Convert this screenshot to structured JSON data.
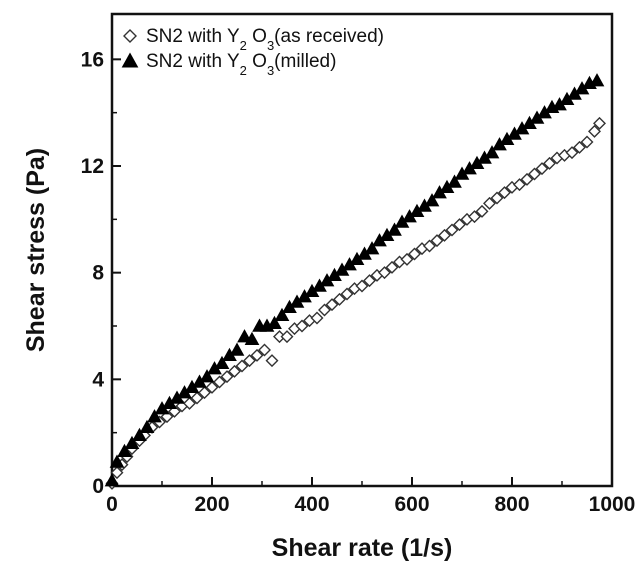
{
  "chart_data": {
    "type": "scatter",
    "xlabel": "Shear rate (1/s)",
    "ylabel": "Shear stress (Pa)",
    "xlim": [
      0,
      1000
    ],
    "ylim": [
      0,
      17.7
    ],
    "xticks": [
      0,
      200,
      400,
      600,
      800,
      1000
    ],
    "yticks": [
      0,
      4,
      8,
      12,
      16
    ],
    "xtick_labels": [
      "0",
      "200",
      "400",
      "600",
      "800",
      "1000"
    ],
    "ytick_labels": [
      "0",
      "4",
      "8",
      "12",
      "16"
    ],
    "grid": false,
    "legend_position": "top-left",
    "series": [
      {
        "name": "SN2  with Y2 O3(as received)",
        "legend_parts": {
          "prefix": "SN2  with Y",
          "sub1": "2",
          "mid": " O",
          "sub2": "3",
          "suffix": "(as received)"
        },
        "marker": "open-diamond",
        "color": "#333333",
        "x": [
          0,
          10,
          20,
          30,
          40,
          55,
          65,
          80,
          95,
          110,
          125,
          140,
          155,
          170,
          185,
          200,
          215,
          230,
          245,
          260,
          275,
          290,
          305,
          320,
          335,
          350,
          365,
          380,
          395,
          410,
          425,
          440,
          455,
          470,
          485,
          500,
          515,
          530,
          545,
          560,
          575,
          590,
          605,
          620,
          635,
          650,
          665,
          680,
          695,
          710,
          725,
          740,
          755,
          770,
          785,
          800,
          815,
          830,
          845,
          860,
          875,
          890,
          905,
          920,
          935,
          950,
          965,
          975
        ],
        "y": [
          0.1,
          0.5,
          0.8,
          1.1,
          1.4,
          1.7,
          1.9,
          2.2,
          2.4,
          2.6,
          2.8,
          3.0,
          3.1,
          3.3,
          3.5,
          3.7,
          3.9,
          4.1,
          4.3,
          4.5,
          4.7,
          4.9,
          5.1,
          4.7,
          5.6,
          5.6,
          5.9,
          6.0,
          6.2,
          6.3,
          6.6,
          6.8,
          7.0,
          7.2,
          7.4,
          7.5,
          7.7,
          7.9,
          8.0,
          8.2,
          8.4,
          8.5,
          8.7,
          8.9,
          9.0,
          9.2,
          9.4,
          9.6,
          9.8,
          10.0,
          10.1,
          10.3,
          10.6,
          10.8,
          11.0,
          11.2,
          11.3,
          11.5,
          11.7,
          11.9,
          12.1,
          12.3,
          12.4,
          12.5,
          12.7,
          12.9,
          13.3,
          13.6
        ]
      },
      {
        "name": "SN2  with Y2 O3(milled)",
        "legend_parts": {
          "prefix": "SN2  with Y",
          "sub1": "2",
          "mid": " O",
          "sub2": "3",
          "suffix": "(milled)"
        },
        "marker": "filled-triangle",
        "color": "#000000",
        "x": [
          0,
          10,
          25,
          40,
          55,
          70,
          85,
          100,
          115,
          130,
          145,
          160,
          175,
          190,
          205,
          220,
          235,
          250,
          265,
          280,
          295,
          310,
          325,
          340,
          355,
          370,
          385,
          400,
          415,
          430,
          445,
          460,
          475,
          490,
          505,
          520,
          535,
          550,
          565,
          580,
          595,
          610,
          625,
          640,
          655,
          670,
          685,
          700,
          715,
          730,
          745,
          760,
          775,
          790,
          805,
          820,
          835,
          850,
          865,
          880,
          895,
          910,
          925,
          940,
          955,
          970
        ],
        "y": [
          0.2,
          0.9,
          1.3,
          1.6,
          1.9,
          2.2,
          2.6,
          2.9,
          3.1,
          3.3,
          3.5,
          3.7,
          3.9,
          4.1,
          4.4,
          4.6,
          4.9,
          5.1,
          5.6,
          5.5,
          6.0,
          6.0,
          6.1,
          6.4,
          6.7,
          6.9,
          7.1,
          7.3,
          7.5,
          7.7,
          7.9,
          8.1,
          8.3,
          8.5,
          8.7,
          8.9,
          9.2,
          9.4,
          9.6,
          9.9,
          10.1,
          10.3,
          10.5,
          10.7,
          11.0,
          11.2,
          11.4,
          11.7,
          11.9,
          12.1,
          12.3,
          12.5,
          12.8,
          13.0,
          13.2,
          13.4,
          13.6,
          13.8,
          14.0,
          14.2,
          14.3,
          14.5,
          14.7,
          14.9,
          15.1,
          15.2
        ]
      }
    ]
  }
}
